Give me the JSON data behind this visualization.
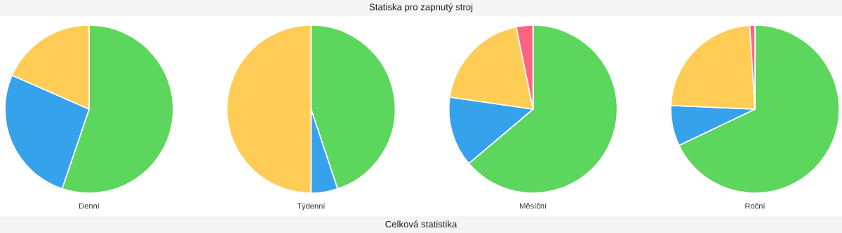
{
  "chart_data": [
    {
      "type": "pie",
      "title": "Denní",
      "annotations": [
        "Statiska pro zapnutý stroj"
      ],
      "categories": [
        null,
        null,
        null
      ],
      "values": [
        55.2,
        26.4,
        18.4
      ],
      "colors": [
        "#5cd65c",
        "#36a2eb",
        "#ffcd56"
      ]
    },
    {
      "type": "pie",
      "title": "Týdenní",
      "categories": [
        null,
        null,
        null
      ],
      "values": [
        44.9,
        5.1,
        50.0
      ],
      "colors": [
        "#5cd65c",
        "#36a2eb",
        "#ffcd56"
      ]
    },
    {
      "type": "pie",
      "title": "Měsíční",
      "categories": [
        null,
        null,
        null,
        null
      ],
      "values": [
        63.8,
        13.5,
        19.5,
        3.2
      ],
      "colors": [
        "#5cd65c",
        "#36a2eb",
        "#ffcd56",
        "#ff6384"
      ]
    },
    {
      "type": "pie",
      "title": "Roční",
      "annotations": [
        "Celková statistika"
      ],
      "categories": [
        null,
        null,
        null,
        null
      ],
      "values": [
        67.9,
        7.8,
        23.3,
        1.0
      ],
      "colors": [
        "#5cd65c",
        "#36a2eb",
        "#ffcd56",
        "#ff6384"
      ]
    }
  ]
}
